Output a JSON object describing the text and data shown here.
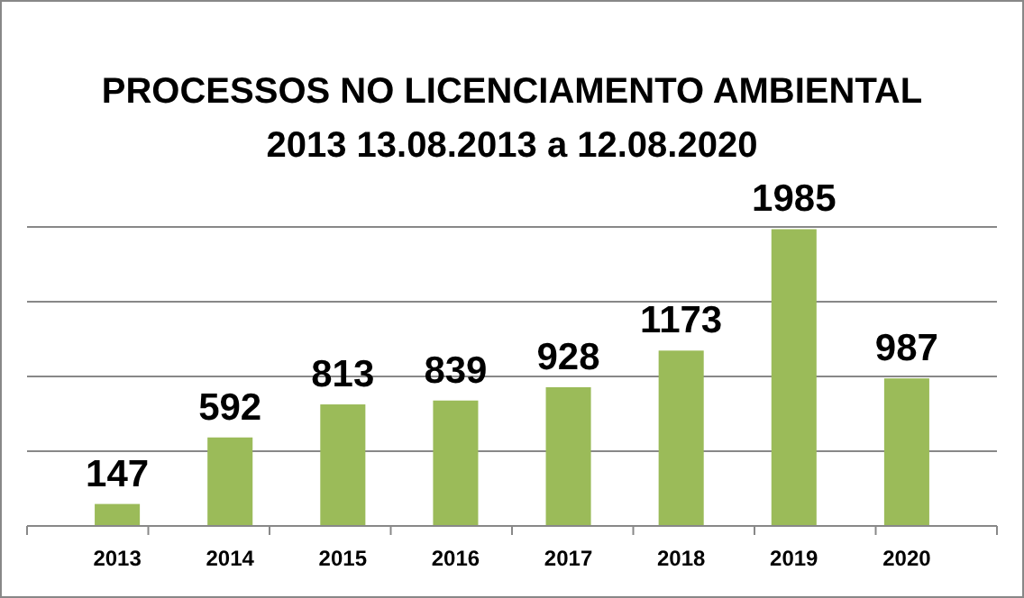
{
  "chart_data": {
    "type": "bar",
    "title": "PROCESSOS NO LICENCIAMENTO AMBIENTAL 2013 13.08.2013 a 12.08.2020",
    "categories": [
      "2013",
      "2014",
      "2015",
      "2016",
      "2017",
      "2018",
      "2019",
      "2020"
    ],
    "values": [
      147,
      592,
      813,
      839,
      928,
      1173,
      1985,
      987
    ],
    "color": "#9bbb59",
    "ylim": [
      0,
      2000
    ],
    "yticks": [
      {
        "value": 0,
        "label": null
      },
      {
        "value": 500,
        "label": null
      },
      {
        "value": 1000,
        "label": null
      },
      {
        "value": 1500,
        "label": null
      },
      {
        "value": 2000,
        "label": null
      }
    ],
    "grid": "y",
    "tick_labels": "x",
    "data_labels": true
  }
}
